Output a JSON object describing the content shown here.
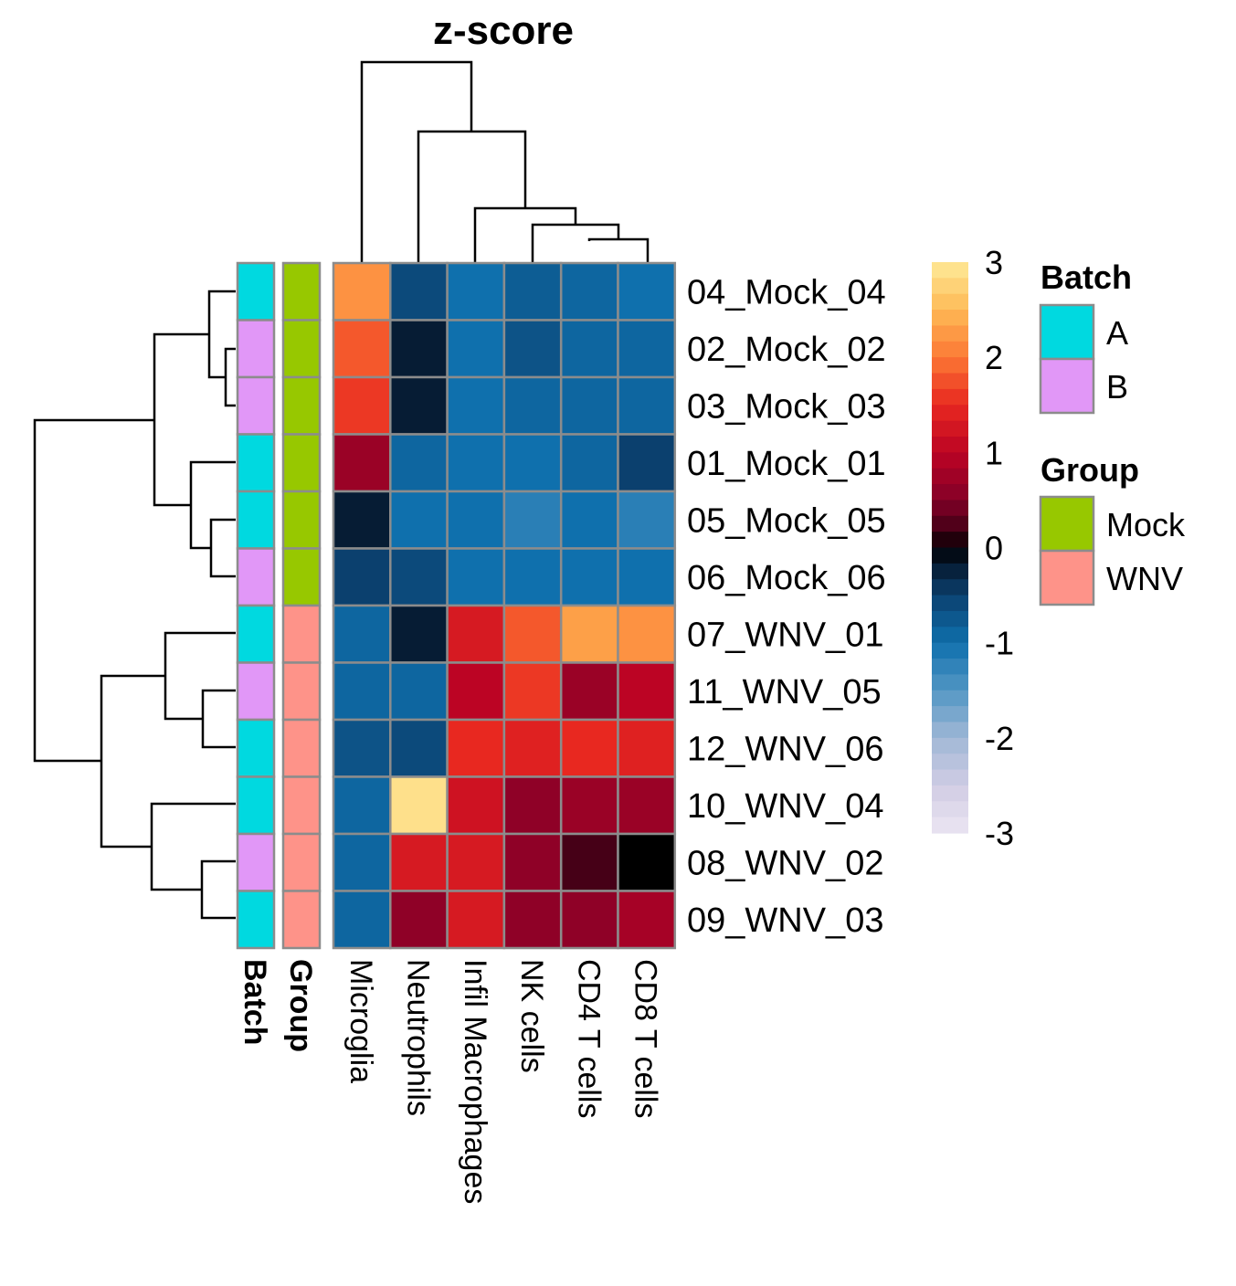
{
  "chart_data": {
    "type": "heatmap",
    "title": "z-score",
    "rows": [
      "04_Mock_04",
      "02_Mock_02",
      "03_Mock_03",
      "01_Mock_01",
      "05_Mock_05",
      "06_Mock_06",
      "07_WNV_01",
      "11_WNV_05",
      "12_WNV_06",
      "10_WNV_04",
      "08_WNV_02",
      "09_WNV_03"
    ],
    "columns": [
      "Microglia",
      "Neutrophils",
      "Infil Macrophages",
      "NK cells",
      "CD4 T cells",
      "CD8 T cells"
    ],
    "values": [
      [
        2.2,
        -0.6,
        -1.0,
        -0.8,
        -0.9,
        -1.0
      ],
      [
        1.8,
        -0.2,
        -1.0,
        -0.7,
        -0.9,
        -0.9
      ],
      [
        1.6,
        -0.2,
        -1.0,
        -0.9,
        -0.9,
        -0.9
      ],
      [
        0.7,
        -0.9,
        -1.0,
        -1.0,
        -0.9,
        -0.5
      ],
      [
        -0.2,
        -1.0,
        -1.0,
        -1.2,
        -1.0,
        -1.2
      ],
      [
        -0.5,
        -0.6,
        -1.0,
        -1.0,
        -1.0,
        -1.0
      ],
      [
        -0.9,
        -0.2,
        1.3,
        1.8,
        2.3,
        2.2
      ],
      [
        -0.9,
        -0.9,
        1.0,
        1.6,
        0.7,
        1.0
      ],
      [
        -0.7,
        -0.6,
        1.5,
        1.4,
        1.5,
        1.4
      ],
      [
        -0.9,
        2.9,
        1.2,
        0.6,
        0.7,
        0.7
      ],
      [
        -0.9,
        1.3,
        1.3,
        0.6,
        0.2,
        0.0
      ],
      [
        -0.9,
        0.6,
        1.3,
        0.6,
        0.6,
        0.8
      ]
    ],
    "colorbar": {
      "min": -3,
      "max": 3,
      "ticks": [
        3,
        2,
        1,
        0,
        -1,
        -2,
        -3
      ]
    },
    "annotations": {
      "batch_label": "Batch",
      "group_label": "Group",
      "batch": [
        "A",
        "B",
        "B",
        "A",
        "A",
        "B",
        "A",
        "B",
        "A",
        "A",
        "B",
        "A"
      ],
      "group": [
        "Mock",
        "Mock",
        "Mock",
        "Mock",
        "Mock",
        "Mock",
        "WNV",
        "WNV",
        "WNV",
        "WNV",
        "WNV",
        "WNV"
      ]
    },
    "legends": {
      "batch": {
        "title": "Batch",
        "items": [
          {
            "label": "A",
            "color": "#00D9E0"
          },
          {
            "label": "B",
            "color": "#E197F7"
          }
        ]
      },
      "group": {
        "title": "Group",
        "items": [
          {
            "label": "Mock",
            "color": "#97C800"
          },
          {
            "label": "WNV",
            "color": "#FE9389"
          }
        ]
      }
    },
    "row_dendrogram": true,
    "column_dendrogram": true
  }
}
